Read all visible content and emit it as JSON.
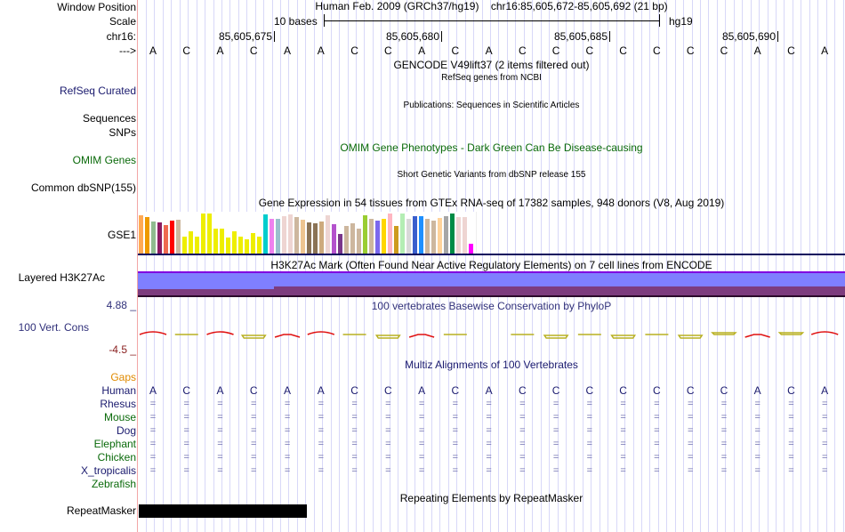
{
  "header": {
    "window_position_label": "Window Position",
    "scale_label": "Scale",
    "chrom_label": "chr16:",
    "strand_label": "--->",
    "assembly": "Human Feb. 2009 (GRCh37/hg19)",
    "position": "chr16:85,605,672-85,605,692 (21 bp)",
    "scale_text": "10 bases",
    "scale_db": "hg19",
    "ruler_ticks": [
      "85,605,675",
      "85,605,680",
      "85,605,685",
      "85,605,690"
    ]
  },
  "sequence": [
    "A",
    "C",
    "A",
    "C",
    "A",
    "A",
    "C",
    "C",
    "A",
    "C",
    "A",
    "C",
    "C",
    "C",
    "C",
    "C",
    "C",
    "C",
    "A",
    "C",
    "A"
  ],
  "tracks": {
    "gencode_title": "GENCODE V49lift37 (2 items filtered out)",
    "refseq_title": "RefSeq genes from NCBI",
    "refseq_label": "RefSeq Curated",
    "pubs_title": "Publications: Sequences in Scientific Articles",
    "sequences_label": "Sequences",
    "snps_label": "SNPs",
    "omim_title": "OMIM Gene Phenotypes - Dark Green Can Be Disease-causing",
    "omim_label": "OMIM Genes",
    "dbsnp_title": "Short Genetic Variants from dbSNP release 155",
    "dbsnp_label": "Common dbSNP(155)",
    "gtex_title": "Gene Expression in 54 tissues from GTEx RNA-seq of 17382 samples, 948 donors (V8, Aug 2019)",
    "gtex_label": "GSE1",
    "h3k27ac_title": "H3K27Ac Mark (Often Found Near Active Regulatory Elements) on 7 cell lines from ENCODE",
    "h3k27ac_label": "Layered H3K27Ac",
    "cons_title": "100 vertebrates Basewise Conservation by PhyloP",
    "cons_label": "100 Vert. Cons",
    "cons_max": "4.88 _",
    "cons_min": "-4.5 _",
    "multiz_title": "Multiz Alignments of 100 Vertebrates",
    "gaps_label": "Gaps",
    "rmsk_title": "Repeating Elements by RepeatMasker",
    "rmsk_label": "RepeatMasker"
  },
  "species": [
    {
      "name": "Human",
      "color": "#1a1a6e"
    },
    {
      "name": "Rhesus",
      "color": "#1a1a6e"
    },
    {
      "name": "Mouse",
      "color": "#0a6a0a"
    },
    {
      "name": "Dog",
      "color": "#1a1a6e"
    },
    {
      "name": "Elephant",
      "color": "#0a6a0a"
    },
    {
      "name": "Chicken",
      "color": "#0a6a0a"
    },
    {
      "name": "X_tropicalis",
      "color": "#1a1a6e"
    },
    {
      "name": "Zebrafish",
      "color": "#0a6a0a"
    }
  ],
  "align_symbol": "=",
  "gtex_bars": [
    {
      "value": 0.95,
      "color": "#FFAA55"
    },
    {
      "value": 0.91,
      "color": "#EE9A00"
    },
    {
      "value": 0.8,
      "color": "#8FBC8F"
    },
    {
      "value": 0.78,
      "color": "#8B1C62"
    },
    {
      "value": 0.71,
      "color": "#EE6A50"
    },
    {
      "value": 0.83,
      "color": "#FF0000"
    },
    {
      "value": 0.85,
      "color": "#CDB79E"
    },
    {
      "value": 0.42,
      "color": "#EEEE00"
    },
    {
      "value": 0.55,
      "color": "#EEEE00"
    },
    {
      "value": 0.42,
      "color": "#EEEE00"
    },
    {
      "value": 1.0,
      "color": "#EEEE00"
    },
    {
      "value": 1.0,
      "color": "#EEEE00"
    },
    {
      "value": 0.62,
      "color": "#EEEE00"
    },
    {
      "value": 0.62,
      "color": "#EEEE00"
    },
    {
      "value": 0.4,
      "color": "#EEEE00"
    },
    {
      "value": 0.55,
      "color": "#EEEE00"
    },
    {
      "value": 0.42,
      "color": "#EEEE00"
    },
    {
      "value": 0.35,
      "color": "#EEEE00"
    },
    {
      "value": 0.5,
      "color": "#EEEE00"
    },
    {
      "value": 0.42,
      "color": "#EEEE00"
    },
    {
      "value": 0.97,
      "color": "#00CDCD"
    },
    {
      "value": 0.86,
      "color": "#EE82EE"
    },
    {
      "value": 0.86,
      "color": "#9AC0CD"
    },
    {
      "value": 0.94,
      "color": "#EED5D2"
    },
    {
      "value": 0.98,
      "color": "#EED5D2"
    },
    {
      "value": 0.91,
      "color": "#CDB79E"
    },
    {
      "value": 0.85,
      "color": "#EEC591"
    },
    {
      "value": 0.78,
      "color": "#8B7355"
    },
    {
      "value": 0.76,
      "color": "#8B7355"
    },
    {
      "value": 0.8,
      "color": "#CDAA7D"
    },
    {
      "value": 0.96,
      "color": "#EED5D2"
    },
    {
      "value": 0.74,
      "color": "#B452CD"
    },
    {
      "value": 0.49,
      "color": "#7A378B"
    },
    {
      "value": 0.69,
      "color": "#CDB79E"
    },
    {
      "value": 0.76,
      "color": "#CDB79E"
    },
    {
      "value": 0.62,
      "color": "#CDB79E"
    },
    {
      "value": 0.95,
      "color": "#9ACD32"
    },
    {
      "value": 0.86,
      "color": "#CDB79E"
    },
    {
      "value": 0.82,
      "color": "#7B68EE"
    },
    {
      "value": 0.86,
      "color": "#FFD700"
    },
    {
      "value": 1.0,
      "color": "#FFB6C1"
    },
    {
      "value": 0.7,
      "color": "#CD9B1D"
    },
    {
      "value": 1.0,
      "color": "#B4EEB4"
    },
    {
      "value": 0.86,
      "color": "#D9D9D9"
    },
    {
      "value": 0.93,
      "color": "#3A5FCD"
    },
    {
      "value": 0.93,
      "color": "#1E90FF"
    },
    {
      "value": 0.86,
      "color": "#CDB79E"
    },
    {
      "value": 0.83,
      "color": "#CDB79E"
    },
    {
      "value": 0.88,
      "color": "#FFD39B"
    },
    {
      "value": 0.93,
      "color": "#A6A6A6"
    },
    {
      "value": 1.0,
      "color": "#008B45"
    },
    {
      "value": 0.9,
      "color": "#EED5D2"
    },
    {
      "value": 0.91,
      "color": "#EED5D2"
    },
    {
      "value": 0.25,
      "color": "#FF00FF"
    }
  ],
  "colors": {
    "h3k27ac_light": "#7f7fff",
    "h3k27ac_dark": "#7d3c7e",
    "h3k27ac_top": "#8000e0",
    "gtex_axis": "#0b0b5e",
    "cons_pos": "#e01010",
    "cons_neg": "#b8b020"
  }
}
